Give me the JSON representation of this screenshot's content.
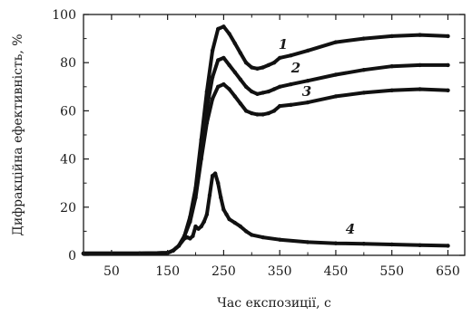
{
  "chart_data": {
    "type": "line",
    "xlabel": "Час експозиції, с",
    "ylabel": "Дифракційна ефективність, %",
    "xlim": [
      0,
      680
    ],
    "ylim": [
      0,
      100
    ],
    "xticks": [
      50,
      150,
      250,
      350,
      450,
      550,
      650
    ],
    "yticks": [
      0,
      20,
      40,
      60,
      80,
      100
    ],
    "grid": false,
    "legend": "none",
    "line_color": "#111111",
    "series": [
      {
        "label": "1",
        "x": [
          0,
          100,
          150,
          160,
          170,
          180,
          190,
          200,
          210,
          220,
          230,
          240,
          250,
          260,
          270,
          280,
          290,
          300,
          310,
          320,
          330,
          340,
          350,
          370,
          400,
          450,
          500,
          550,
          600,
          650
        ],
        "y": [
          0.8,
          0.8,
          1,
          2,
          4,
          8,
          16,
          28,
          48,
          68,
          85,
          94,
          95,
          92,
          88,
          84,
          80,
          78,
          77.5,
          78,
          79,
          80,
          82,
          83,
          85,
          88.5,
          90,
          91,
          91.5,
          91
        ]
      },
      {
        "label": "2",
        "x": [
          0,
          100,
          150,
          160,
          170,
          180,
          190,
          200,
          210,
          220,
          230,
          240,
          250,
          260,
          270,
          280,
          290,
          300,
          310,
          320,
          330,
          340,
          350,
          370,
          400,
          450,
          500,
          550,
          600,
          650
        ],
        "y": [
          0.8,
          0.8,
          1,
          2,
          4,
          8,
          15,
          26,
          44,
          61,
          74,
          81,
          82,
          79,
          76,
          73,
          70,
          68,
          67,
          67.5,
          68,
          69,
          70,
          71,
          72.5,
          75,
          77,
          78.5,
          79,
          79
        ]
      },
      {
        "label": "3",
        "x": [
          0,
          100,
          150,
          160,
          170,
          180,
          190,
          200,
          210,
          220,
          230,
          240,
          250,
          260,
          270,
          280,
          290,
          300,
          310,
          320,
          330,
          340,
          350,
          370,
          400,
          450,
          500,
          550,
          600,
          650
        ],
        "y": [
          0.8,
          0.8,
          1,
          2,
          4,
          8,
          14,
          24,
          40,
          55,
          65,
          70,
          71,
          69,
          66,
          63,
          60,
          59,
          58.5,
          58.5,
          59,
          60,
          62,
          62.5,
          63.5,
          66,
          67.5,
          68.5,
          69,
          68.5
        ]
      },
      {
        "label": "4",
        "x": [
          0,
          100,
          150,
          160,
          170,
          180,
          185,
          190,
          195,
          200,
          205,
          210,
          215,
          220,
          225,
          230,
          235,
          240,
          245,
          250,
          255,
          260,
          270,
          280,
          290,
          300,
          320,
          350,
          400,
          450,
          500,
          550,
          600,
          650
        ],
        "y": [
          0.8,
          0.8,
          1,
          2,
          4,
          7,
          7.5,
          7,
          8,
          12,
          11,
          12,
          14,
          17,
          25,
          33,
          34,
          30,
          24,
          19,
          17,
          15,
          13.5,
          12,
          10,
          8.5,
          7.5,
          6.5,
          5.5,
          5,
          4.8,
          4.5,
          4.2,
          4
        ]
      }
    ]
  }
}
